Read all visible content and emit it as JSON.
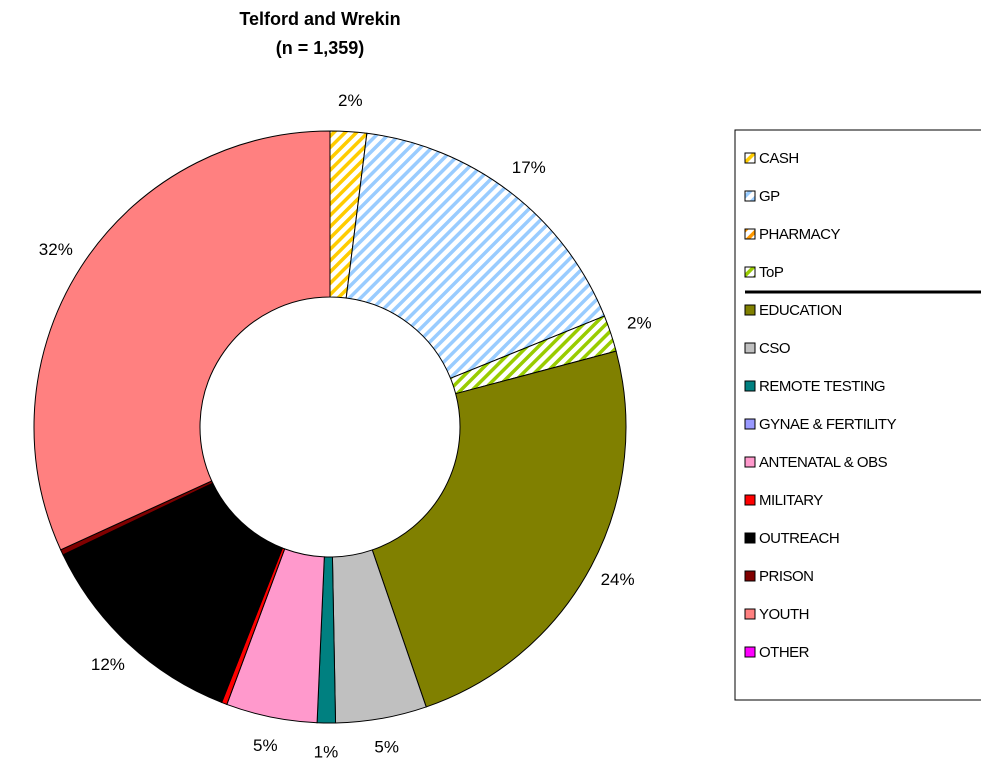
{
  "chart_data": {
    "type": "donut",
    "title": "Telford and Wrekin",
    "subtitle": "(n = 1,359)",
    "categories": [
      "CASH",
      "GP",
      "PHARMACY",
      "ToP",
      "EDUCATION",
      "CSO",
      "REMOTE TESTING",
      "GYNAE & FERTILITY",
      "ANTENATAL & OBS",
      "MILITARY",
      "OUTREACH",
      "PRISON",
      "YOUTH",
      "OTHER"
    ],
    "values": [
      2,
      17,
      0,
      2,
      24,
      5,
      1,
      0,
      5,
      0.3,
      12,
      0.3,
      32,
      0
    ],
    "value_labels": [
      "2%",
      "17%",
      null,
      "2%",
      "24%",
      "5%",
      "1%",
      null,
      "5%",
      null,
      "12%",
      null,
      "32%",
      null
    ],
    "colors": [
      "#ffcc00",
      "#99ccff",
      "#ff9900",
      "#99cc00",
      "#808000",
      "#c0c0c0",
      "#008080",
      "#9999ff",
      "#ff99cc",
      "#ff0000",
      "#000000",
      "#800000",
      "#ff8080",
      "#ff00ff"
    ],
    "hatched": [
      true,
      true,
      true,
      true,
      false,
      false,
      false,
      false,
      false,
      false,
      false,
      false,
      false,
      false
    ],
    "legend": "right"
  }
}
